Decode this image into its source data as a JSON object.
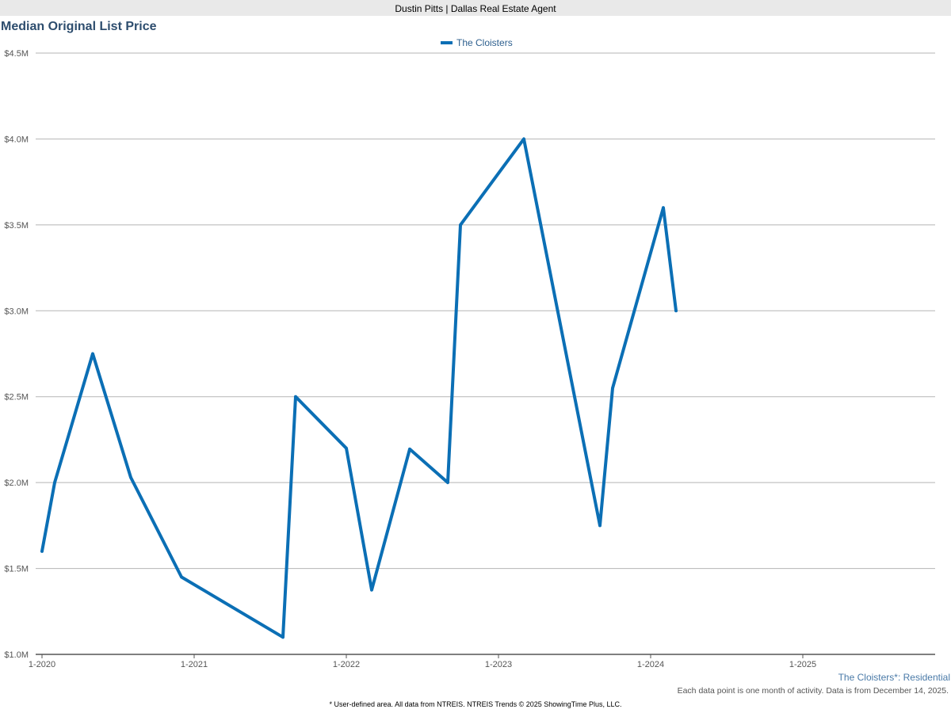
{
  "header": {
    "agent": "Dustin Pitts | Dallas Real Estate Agent"
  },
  "chart_data": {
    "type": "line",
    "title": "Median Original List Price",
    "xlabel": "",
    "ylabel": "",
    "y_tick_labels": [
      "$1.0M",
      "$1.5M",
      "$2.0M",
      "$2.5M",
      "$3.0M",
      "$3.5M",
      "$4.0M",
      "$4.5M"
    ],
    "y_ticks": [
      1000000,
      1500000,
      2000000,
      2500000,
      3000000,
      3500000,
      4000000,
      4500000
    ],
    "ylim": [
      1000000,
      4500000
    ],
    "x_tick_labels": [
      "1-2020",
      "1-2021",
      "1-2022",
      "1-2023",
      "1-2024",
      "1-2025"
    ],
    "x_ticks": [
      "2020-01",
      "2021-01",
      "2022-01",
      "2023-01",
      "2024-01",
      "2025-01"
    ],
    "xlim": [
      "2020-01",
      "2025-12"
    ],
    "grid": true,
    "legend_position": "top-center",
    "series": [
      {
        "name": "The Cloisters",
        "color": "#0b6fb5",
        "points": [
          [
            "2020-01",
            1600000
          ],
          [
            "2020-02",
            2000000
          ],
          [
            "2020-05",
            2750000
          ],
          [
            "2020-08",
            2030000
          ],
          [
            "2020-12",
            1450000
          ],
          [
            "2021-08",
            1100000
          ],
          [
            "2021-09",
            2500000
          ],
          [
            "2022-01",
            2200000
          ],
          [
            "2022-03",
            1375000
          ],
          [
            "2022-06",
            2195000
          ],
          [
            "2022-09",
            2000000
          ],
          [
            "2022-10",
            3500000
          ],
          [
            "2023-03",
            4000000
          ],
          [
            "2023-09",
            1750000
          ],
          [
            "2023-10",
            2550000
          ],
          [
            "2024-02",
            3600000
          ],
          [
            "2024-03",
            3000000
          ]
        ]
      }
    ]
  },
  "notes": {
    "area": "The Cloisters*: Residential",
    "activity": "Each data point is one month of activity. Data is from December 14, 2025.",
    "footer": "* User-defined area. All data from NTREIS. NTREIS Trends © 2025 ShowingTime Plus, LLC."
  }
}
